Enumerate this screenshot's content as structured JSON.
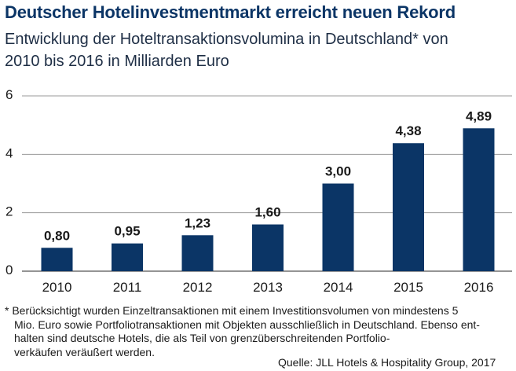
{
  "title": "Deutscher Hotelinvestmentmarkt erreicht neuen Rekord",
  "subtitle_line1": "Entwicklung der Hoteltransaktionsvolumina in Deutschland* von",
  "subtitle_line2": "2010 bis 2016 in Milliarden Euro",
  "footnote": {
    "line1": "* Berücksichtigt wurden Einzeltransaktionen mit einem Investitionsvolumen von mindestens 5",
    "line2": "Mio. Euro sowie Portfoliotransaktionen mit Objekten ausschließlich in Deutschland. Ebenso ent-",
    "line3": "halten sind deutsche Hotels, die als Teil von grenzüberschreitenden Portfolio-",
    "line4": "verkäufen veräußert werden."
  },
  "source": "Quelle: JLL Hotels & Hospitality Group, 2017",
  "colors": {
    "bar": "#0b3566",
    "title": "#0b3566",
    "grid": "#9a9a9a"
  },
  "chart_data": {
    "type": "bar",
    "categories": [
      "2010",
      "2011",
      "2012",
      "2013",
      "2014",
      "2015",
      "2016"
    ],
    "values": [
      0.8,
      0.95,
      1.23,
      1.6,
      3.0,
      4.38,
      4.89
    ],
    "value_labels": [
      "0,80",
      "0,95",
      "1,23",
      "1,60",
      "3,00",
      "4,38",
      "4,89"
    ],
    "yticks": [
      0,
      2,
      4,
      6
    ],
    "ylim": [
      0,
      6
    ],
    "grid": true,
    "legend": "none",
    "xlabel": "",
    "ylabel": ""
  }
}
